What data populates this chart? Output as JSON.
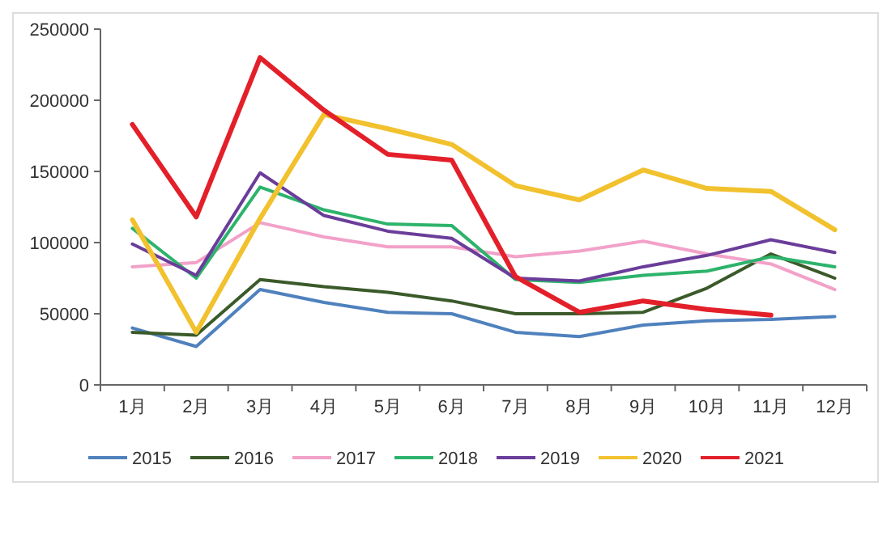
{
  "chart_data": {
    "type": "line",
    "categories": [
      "1月",
      "2月",
      "3月",
      "4月",
      "5月",
      "6月",
      "7月",
      "8月",
      "9月",
      "10月",
      "11月",
      "12月"
    ],
    "series": [
      {
        "name": "2015",
        "color": "#4f81bd",
        "values": [
          40000,
          27000,
          67000,
          58000,
          51000,
          50000,
          37000,
          34000,
          42000,
          45000,
          46000,
          48000
        ]
      },
      {
        "name": "2016",
        "color": "#3b5a2a",
        "values": [
          37000,
          35000,
          74000,
          69000,
          65000,
          59000,
          50000,
          50000,
          51000,
          68000,
          92000,
          75000
        ]
      },
      {
        "name": "2017",
        "color": "#f2a1c8",
        "values": [
          83000,
          86000,
          114000,
          104000,
          97000,
          97000,
          90000,
          94000,
          101000,
          92000,
          85000,
          67000
        ]
      },
      {
        "name": "2018",
        "color": "#2db36b",
        "values": [
          110000,
          75000,
          139000,
          123000,
          113000,
          112000,
          74000,
          72000,
          77000,
          80000,
          90000,
          83000
        ]
      },
      {
        "name": "2019",
        "color": "#6a3d9a",
        "values": [
          99000,
          77000,
          149000,
          119000,
          108000,
          103000,
          75000,
          73000,
          83000,
          91000,
          102000,
          93000
        ]
      },
      {
        "name": "2020",
        "color": "#f2c12e",
        "values": [
          116000,
          37000,
          117000,
          190000,
          180000,
          169000,
          140000,
          130000,
          151000,
          138000,
          136000,
          109000
        ]
      },
      {
        "name": "2021",
        "color": "#e3202a",
        "values": [
          183000,
          118000,
          230000,
          193000,
          162000,
          158000,
          76000,
          51000,
          59000,
          53000,
          49000,
          null
        ]
      }
    ],
    "ylim": [
      0,
      250000
    ],
    "yticks": [
      0,
      50000,
      100000,
      150000,
      200000,
      250000
    ],
    "legend": "bottom",
    "grid": false
  }
}
